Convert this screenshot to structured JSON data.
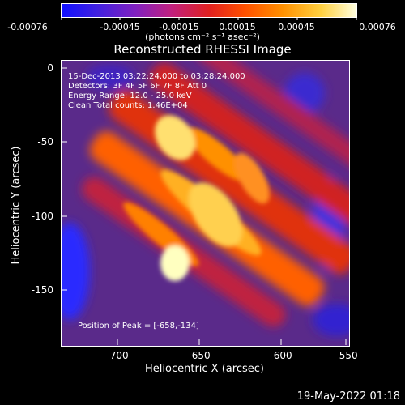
{
  "colorbar": {
    "ticks": [
      "-0.00076",
      "-0.00045",
      "-0.00015",
      "0.00015",
      "0.00045",
      "0.00076"
    ],
    "units": "(photons cm⁻² s⁻¹ asec⁻²)"
  },
  "title": "Reconstructed RHESSI Image",
  "annotations": {
    "time_range": "15-Dec-2013 03:22:24.000 to 03:28:24.000",
    "detectors": "Detectors: 3F 4F 5F 6F 7F 8F  Att 0",
    "energy_range": "Energy Range: 12.0 - 25.0 keV",
    "clean_counts": "Clean    Total counts: 1.46E+04",
    "peak_position": "Position of Peak = [-658,-134]"
  },
  "axes": {
    "x_label": "Heliocentric X (arcsec)",
    "y_label": "Heliocentric Y (arcsec)",
    "x_ticks": [
      "-700",
      "-650",
      "-600",
      "-550"
    ],
    "y_ticks": [
      "0",
      "-50",
      "-100",
      "-150"
    ]
  },
  "footer": {
    "date": "19-May-2022 01:18"
  },
  "colors": {
    "background": "#000000",
    "foreground": "#ffffff"
  }
}
